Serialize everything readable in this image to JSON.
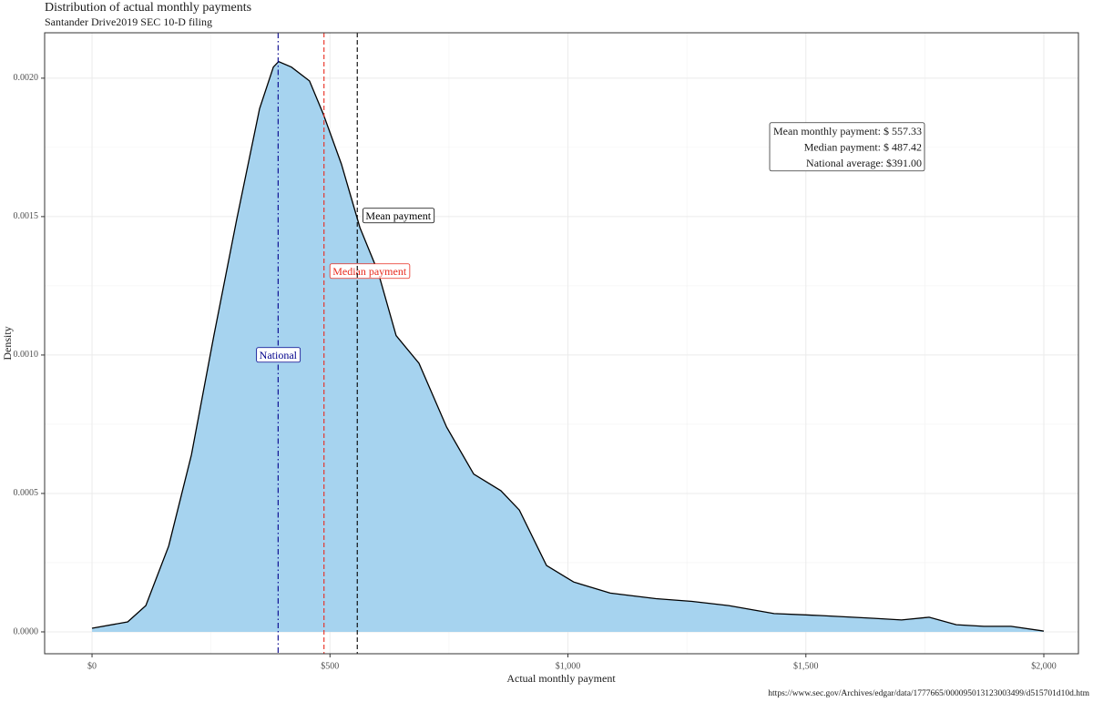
{
  "chart_data": {
    "type": "density",
    "title": "Distribution of actual monthly payments",
    "subtitle": "Santander Drive2019 SEC 10-D filing",
    "xlabel": "Actual monthly payment",
    "ylabel": "Density",
    "caption": "https://www.sec.gov/Archives/edgar/data/1777665/000095013123003499/d515701d10d.htm",
    "fill": "#a6d3ef",
    "line_color": "#000000",
    "grid": true,
    "x": [
      0,
      75,
      113,
      161,
      209,
      256,
      304,
      352,
      381,
      392,
      419,
      457,
      486,
      524,
      563,
      601,
      639,
      687,
      745,
      802,
      859,
      898,
      955,
      1012,
      1089,
      1185,
      1261,
      1338,
      1433,
      1529,
      1644,
      1701,
      1759,
      1816,
      1874,
      1931,
      2000
    ],
    "values": [
      1.3e-05,
      3.6e-05,
      9.5e-05,
      0.00031,
      0.00064,
      0.00107,
      0.00149,
      0.00189,
      0.00204,
      0.00206,
      0.00204,
      0.00199,
      0.00187,
      0.00169,
      0.00146,
      0.0013,
      0.00107,
      0.00097,
      0.00074,
      0.00057,
      0.00051,
      0.00044,
      0.00024,
      0.00018,
      0.00014,
      0.00012,
      0.00011,
      9.5e-05,
      6.6e-05,
      5.9e-05,
      4.9e-05,
      4.3e-05,
      5.3e-05,
      2.6e-05,
      2e-05,
      2e-05,
      3e-06
    ],
    "xlim": [
      -99.6,
      2072.7
    ],
    "ylim": [
      -7.9e-05,
      0.002164
    ],
    "xticks": [
      {
        "value": 0,
        "label": "$0"
      },
      {
        "value": 500,
        "label": "$500"
      },
      {
        "value": 1000,
        "label": "$1,000"
      },
      {
        "value": 1500,
        "label": "$1,500"
      },
      {
        "value": 2000,
        "label": "$2,000"
      }
    ],
    "yticks": [
      {
        "value": 0,
        "label": "0.0000"
      },
      0.0005,
      {
        "value": 0.001,
        "label": "0.0010"
      },
      0.0015,
      {
        "value": 0.002,
        "label": "0.0020"
      }
    ],
    "reference_lines": [
      {
        "name": "National",
        "value": 391,
        "color": "#00008b",
        "dash": "dotdash"
      },
      {
        "name": "Median payment",
        "value": 487.42,
        "color": "#e8291c",
        "dash": "dashed"
      },
      {
        "name": "Mean payment",
        "value": 557.33,
        "color": "#000000",
        "dash": "dashed"
      }
    ],
    "stats_box": [
      "Mean monthly payment: $ 557.33",
      "Median payment: $ 487.42",
      "National average: $391.00"
    ]
  }
}
